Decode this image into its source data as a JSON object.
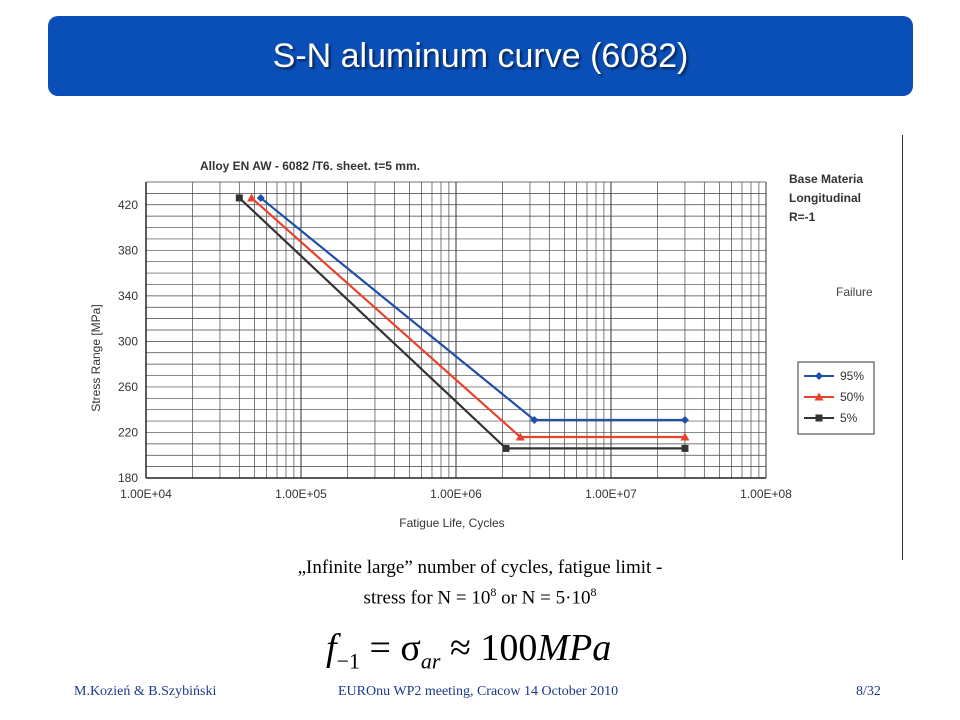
{
  "slide": {
    "title": "S-N aluminum curve (6082)",
    "caption_line1": "„Infinite large” number of cycles, fatigue limit -",
    "caption_line2_prefix": "stress for N = 10",
    "caption_exp1": "8",
    "caption_mid": " or N = 5·10",
    "caption_exp2": "8",
    "formula_f": "f",
    "formula_sub1": "−1",
    "formula_eq": " = σ",
    "formula_sub2": "ar",
    "formula_rest": " ≈ 100",
    "formula_unit": "MPa"
  },
  "footer": {
    "left": "M.Kozień & B.Szybiński",
    "center": "EUROnu WP2 meeting, Cracow 14 October 2010",
    "right": "8/32"
  },
  "chart_data": {
    "type": "line",
    "title": "Alloy EN  AW - 6082 /T6. sheet. t=5 mm.",
    "xlabel": "Fatigue Life,  Cycles",
    "ylabel": "Stress Range [MPa]",
    "x_scale": "log",
    "xlim": [
      10000,
      100000000
    ],
    "ylim": [
      180,
      440
    ],
    "x_tick_values": [
      10000,
      100000,
      1000000,
      10000000,
      100000000
    ],
    "x_tick_labels": [
      "1.00E+04",
      "1.00E+05",
      "1.00E+06",
      "1.00E+07",
      "1.00E+08"
    ],
    "y_ticks": [
      180,
      220,
      260,
      300,
      340,
      380,
      420
    ],
    "grid": true,
    "side_text": [
      "Base Materia",
      "Longitudinal",
      "R=-1"
    ],
    "failure_label": "Failure",
    "legend_position": "right",
    "series": [
      {
        "name": "95%",
        "color": "#1f4fa8",
        "marker": "diamond",
        "x": [
          55000,
          3200000,
          30000000
        ],
        "y": [
          426,
          231,
          231
        ]
      },
      {
        "name": "50%",
        "color": "#e8412c",
        "marker": "triangle",
        "x": [
          48000,
          2600000,
          30000000
        ],
        "y": [
          426,
          216,
          216
        ]
      },
      {
        "name": "5%",
        "color": "#333333",
        "marker": "square",
        "x": [
          40000,
          2100000,
          30000000
        ],
        "y": [
          426,
          206,
          206
        ]
      }
    ]
  }
}
